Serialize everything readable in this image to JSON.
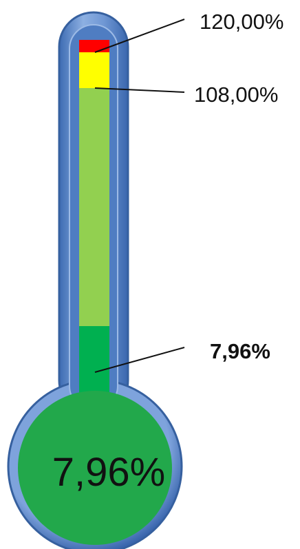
{
  "chart_data": {
    "type": "thermometer",
    "title": "",
    "scale_max_label": "120,00%",
    "threshold_label": "108,00%",
    "current_label": "7,96%",
    "bulb_label": "7,96%",
    "bands": [
      {
        "color": "#ff0000"
      },
      {
        "color": "#ffff00"
      },
      {
        "color": "#92d050"
      },
      {
        "color": "#00b050"
      }
    ],
    "tube_color": "#5b86c8",
    "bulb_color": "#22a84b"
  }
}
